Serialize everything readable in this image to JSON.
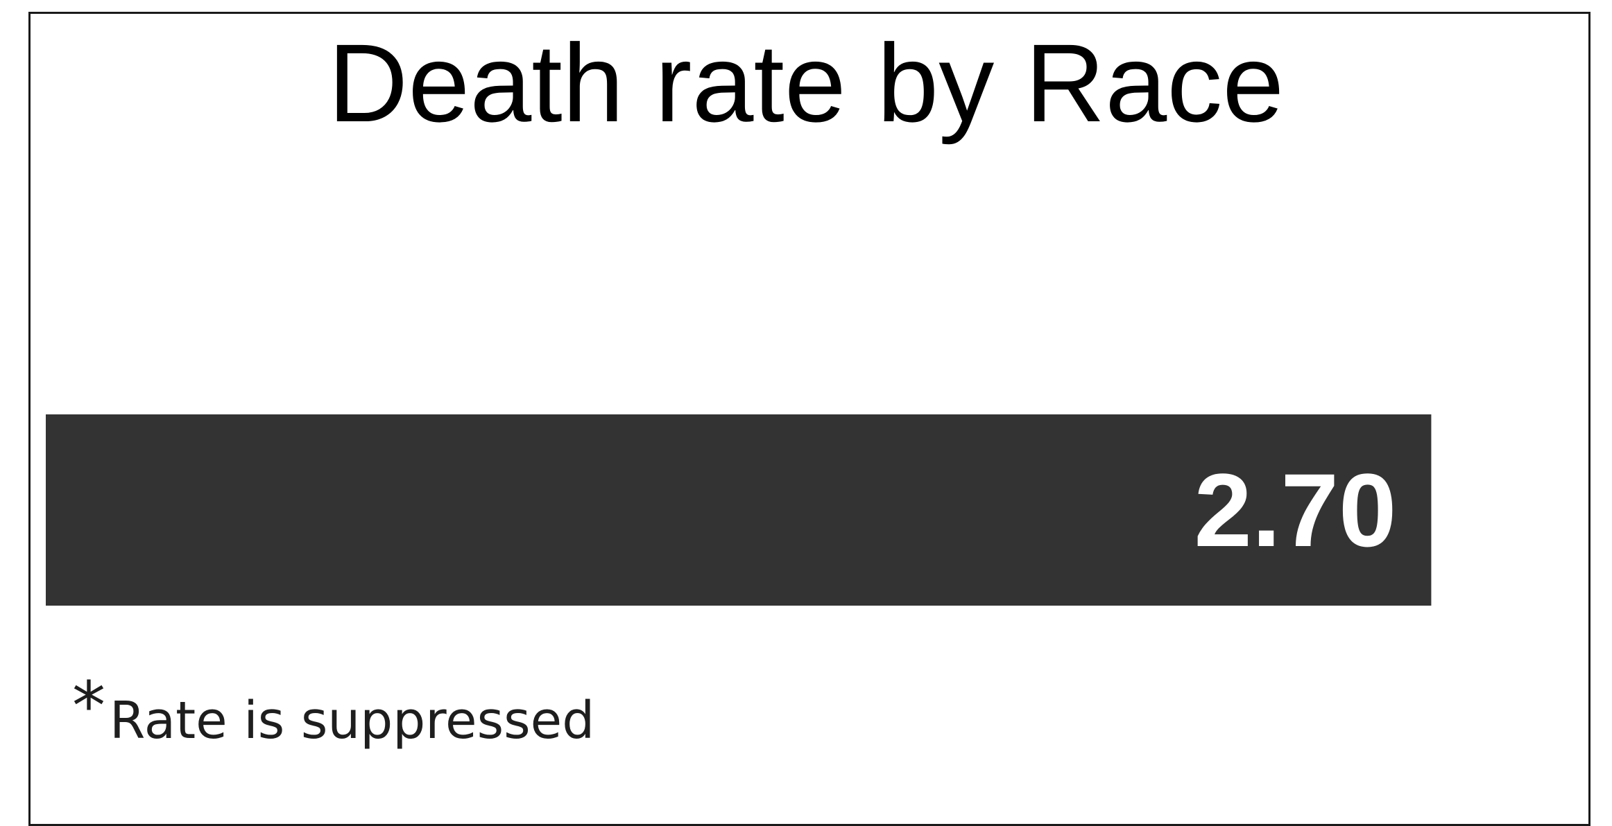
{
  "chart_data": {
    "type": "bar",
    "orientation": "horizontal",
    "title": "Death rate by Race",
    "categories": [
      ""
    ],
    "values": [
      2.7
    ],
    "value_labels": [
      "2.70"
    ],
    "xlim": [
      0,
      2.79
    ],
    "bar_color": "#333333",
    "label_color": "#ffffff",
    "grid": false,
    "legend": "none"
  },
  "footnote": {
    "symbol": "*",
    "text": "Rate is suppressed"
  }
}
